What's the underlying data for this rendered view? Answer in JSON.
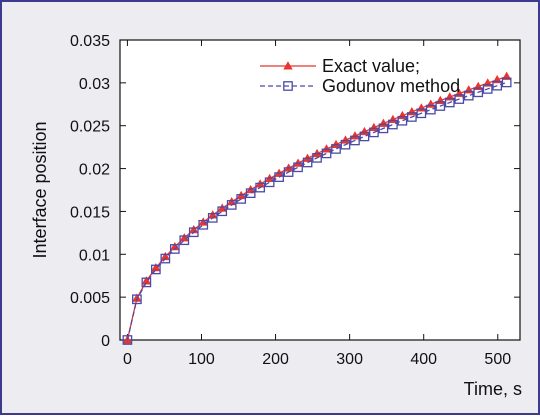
{
  "chart_data": {
    "type": "line",
    "title": "",
    "xlabel": "Time, s",
    "ylabel": "Interface position",
    "xlim": [
      -10,
      530
    ],
    "ylim": [
      0,
      0.035
    ],
    "xticks": [
      0,
      100,
      200,
      300,
      400,
      500
    ],
    "yticks": [
      0,
      0.005,
      0.01,
      0.015,
      0.02,
      0.025,
      0.03,
      0.035
    ],
    "xtick_labels": [
      "0",
      "100",
      "200",
      "300",
      "400",
      "500"
    ],
    "ytick_labels": [
      "0",
      "0.005",
      "0.01",
      "0.015",
      "0.02",
      "0.025",
      "0.03",
      "0.035"
    ],
    "grid": false,
    "legend_position": "top-right",
    "x": [
      0,
      12.8,
      25.6,
      38.4,
      51.2,
      64,
      76.8,
      89.6,
      102.4,
      115.2,
      128,
      140.8,
      153.6,
      166.4,
      179.2,
      192,
      204.8,
      217.6,
      230.4,
      243.2,
      256,
      268.8,
      281.6,
      294.4,
      307.2,
      320,
      332.8,
      345.6,
      358.4,
      371.2,
      384,
      396.8,
      409.6,
      422.4,
      435.2,
      448,
      460.8,
      473.6,
      486.4,
      499.2,
      512
    ],
    "series": [
      {
        "name": "Exact value;",
        "color": "#e8352f",
        "marker": "triangle",
        "line": "solid",
        "values": [
          0,
          0.00486,
          0.00688,
          0.00842,
          0.00972,
          0.01087,
          0.01191,
          0.01286,
          0.01375,
          0.01458,
          0.01537,
          0.01612,
          0.01684,
          0.01753,
          0.01819,
          0.01883,
          0.01944,
          0.02004,
          0.02062,
          0.02119,
          0.02174,
          0.02228,
          0.0228,
          0.02331,
          0.02381,
          0.0243,
          0.02478,
          0.02526,
          0.02572,
          0.02617,
          0.02662,
          0.02706,
          0.0275,
          0.02793,
          0.02835,
          0.02876,
          0.02917,
          0.02957,
          0.02997,
          0.03036,
          0.03075
        ]
      },
      {
        "name": "Godunov method",
        "color": "#4a4aa8",
        "marker": "square",
        "line": "dashed",
        "values": [
          0,
          0.00475,
          0.00672,
          0.00823,
          0.0095,
          0.01062,
          0.01164,
          0.01257,
          0.01344,
          0.01425,
          0.01502,
          0.01576,
          0.01646,
          0.01713,
          0.01778,
          0.0184,
          0.019,
          0.01959,
          0.02015,
          0.02071,
          0.02125,
          0.02177,
          0.02229,
          0.02279,
          0.02328,
          0.02375,
          0.02422,
          0.02469,
          0.02514,
          0.02558,
          0.02602,
          0.02645,
          0.02688,
          0.0273,
          0.02771,
          0.02811,
          0.02851,
          0.0289,
          0.02929,
          0.02967,
          0.03005
        ]
      }
    ]
  }
}
